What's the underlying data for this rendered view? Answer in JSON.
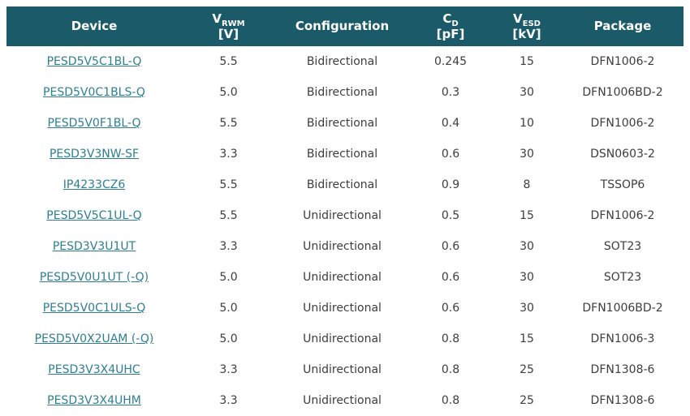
{
  "colors": {
    "header_bg": "#1b5a69",
    "header_text": "#ffffff",
    "link": "#2e7e93",
    "body_text": "#3d3d3d",
    "background": "#ffffff"
  },
  "table": {
    "columns": [
      {
        "label": "Device"
      },
      {
        "sym": "V",
        "sub": "RWM",
        "unit": "[V]"
      },
      {
        "label": "Configuration"
      },
      {
        "sym": "C",
        "sub": "D",
        "unit": "[pF]"
      },
      {
        "sym": "V",
        "sub": "ESD",
        "unit": "[kV]"
      },
      {
        "label": "Package"
      }
    ],
    "rows": [
      {
        "device": "PESD5V5C1BL-Q",
        "vrwm": "5.5",
        "configuration": "Bidirectional",
        "cd": "0.245",
        "vesd": "15",
        "package": "DFN1006-2"
      },
      {
        "device": "PESD5V0C1BLS-Q",
        "vrwm": "5.0",
        "configuration": "Bidirectional",
        "cd": "0.3",
        "vesd": "30",
        "package": "DFN1006BD-2"
      },
      {
        "device": "PESD5V0F1BL-Q",
        "vrwm": "5.5",
        "configuration": "Bidirectional",
        "cd": "0.4",
        "vesd": "10",
        "package": "DFN1006-2"
      },
      {
        "device": "PESD3V3NW-SF",
        "vrwm": "3.3",
        "configuration": "Bidirectional",
        "cd": "0.6",
        "vesd": "30",
        "package": "DSN0603-2"
      },
      {
        "device": "IP4233CZ6",
        "vrwm": "5.5",
        "configuration": "Bidirectional",
        "cd": "0.9",
        "vesd": "8",
        "package": "TSSOP6"
      },
      {
        "device": "PESD5V5C1UL-Q",
        "vrwm": "5.5",
        "configuration": "Unidirectional",
        "cd": "0.5",
        "vesd": "15",
        "package": "DFN1006-2"
      },
      {
        "device": "PESD3V3U1UT",
        "vrwm": "3.3",
        "configuration": "Unidirectional",
        "cd": "0.6",
        "vesd": "30",
        "package": "SOT23"
      },
      {
        "device": "PESD5V0U1UT (-Q)",
        "vrwm": "5.0",
        "configuration": "Unidirectional",
        "cd": "0.6",
        "vesd": "30",
        "package": "SOT23"
      },
      {
        "device": "PESD5V0C1ULS-Q",
        "vrwm": "5.0",
        "configuration": "Unidirectional",
        "cd": "0.6",
        "vesd": "30",
        "package": "DFN1006BD-2"
      },
      {
        "device": "PESD5V0X2UAM (-Q)",
        "vrwm": "5.0",
        "configuration": "Unidirectional",
        "cd": "0.8",
        "vesd": "15",
        "package": "DFN1006-3"
      },
      {
        "device": "PESD3V3X4UHC",
        "vrwm": "3.3",
        "configuration": "Unidirectional",
        "cd": "0.8",
        "vesd": "25",
        "package": "DFN1308-6"
      },
      {
        "device": "PESD3V3X4UHM",
        "vrwm": "3.3",
        "configuration": "Unidirectional",
        "cd": "0.8",
        "vesd": "25",
        "package": "DFN1308-6"
      }
    ]
  }
}
